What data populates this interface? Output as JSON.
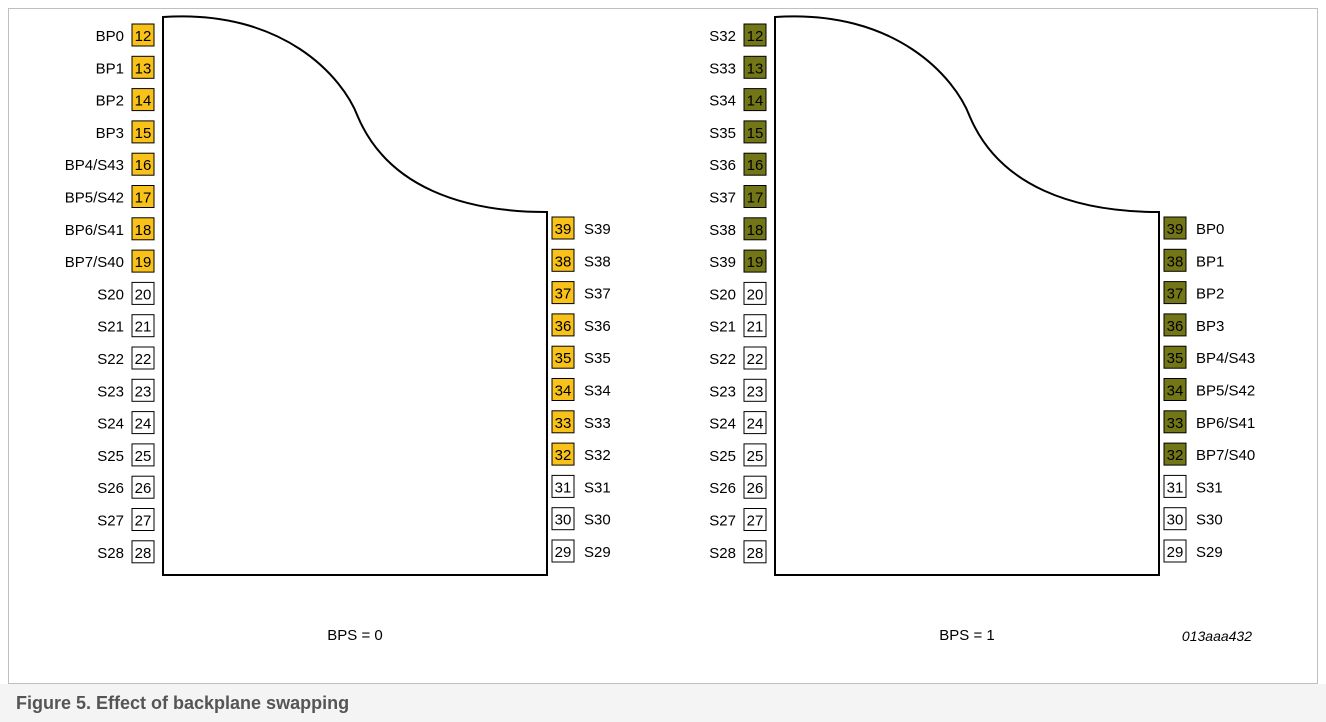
{
  "caption": "Figure 5.  Effect of backplane swapping",
  "figure_id": "013aaa432",
  "colors": {
    "yellow": "#F9C21A",
    "olive": "#737617",
    "outline": "#000000",
    "frame": "#bfbfbf"
  },
  "panels": [
    {
      "bps_label": "BPS = 0",
      "left_pins": [
        {
          "num": "12",
          "label": "BP0",
          "highlight": true
        },
        {
          "num": "13",
          "label": "BP1",
          "highlight": true
        },
        {
          "num": "14",
          "label": "BP2",
          "highlight": true
        },
        {
          "num": "15",
          "label": "BP3",
          "highlight": true
        },
        {
          "num": "16",
          "label": "BP4/S43",
          "highlight": true
        },
        {
          "num": "17",
          "label": "BP5/S42",
          "highlight": true
        },
        {
          "num": "18",
          "label": "BP6/S41",
          "highlight": true
        },
        {
          "num": "19",
          "label": "BP7/S40",
          "highlight": true
        },
        {
          "num": "20",
          "label": "S20",
          "highlight": false
        },
        {
          "num": "21",
          "label": "S21",
          "highlight": false
        },
        {
          "num": "22",
          "label": "S22",
          "highlight": false
        },
        {
          "num": "23",
          "label": "S23",
          "highlight": false
        },
        {
          "num": "24",
          "label": "S24",
          "highlight": false
        },
        {
          "num": "25",
          "label": "S25",
          "highlight": false
        },
        {
          "num": "26",
          "label": "S26",
          "highlight": false
        },
        {
          "num": "27",
          "label": "S27",
          "highlight": false
        },
        {
          "num": "28",
          "label": "S28",
          "highlight": false
        }
      ],
      "right_pins": [
        {
          "num": "39",
          "label": "S39",
          "highlight": true
        },
        {
          "num": "38",
          "label": "S38",
          "highlight": true
        },
        {
          "num": "37",
          "label": "S37",
          "highlight": true
        },
        {
          "num": "36",
          "label": "S36",
          "highlight": true
        },
        {
          "num": "35",
          "label": "S35",
          "highlight": true
        },
        {
          "num": "34",
          "label": "S34",
          "highlight": true
        },
        {
          "num": "33",
          "label": "S33",
          "highlight": true
        },
        {
          "num": "32",
          "label": "S32",
          "highlight": true
        },
        {
          "num": "31",
          "label": "S31",
          "highlight": false
        },
        {
          "num": "30",
          "label": "S30",
          "highlight": false
        },
        {
          "num": "29",
          "label": "S29",
          "highlight": false
        }
      ]
    },
    {
      "bps_label": "BPS = 1",
      "left_pins": [
        {
          "num": "12",
          "label": "S32",
          "highlight": true
        },
        {
          "num": "13",
          "label": "S33",
          "highlight": true
        },
        {
          "num": "14",
          "label": "S34",
          "highlight": true
        },
        {
          "num": "15",
          "label": "S35",
          "highlight": true
        },
        {
          "num": "16",
          "label": "S36",
          "highlight": true
        },
        {
          "num": "17",
          "label": "S37",
          "highlight": true
        },
        {
          "num": "18",
          "label": "S38",
          "highlight": true
        },
        {
          "num": "19",
          "label": "S39",
          "highlight": true
        },
        {
          "num": "20",
          "label": "S20",
          "highlight": false
        },
        {
          "num": "21",
          "label": "S21",
          "highlight": false
        },
        {
          "num": "22",
          "label": "S22",
          "highlight": false
        },
        {
          "num": "23",
          "label": "S23",
          "highlight": false
        },
        {
          "num": "24",
          "label": "S24",
          "highlight": false
        },
        {
          "num": "25",
          "label": "S25",
          "highlight": false
        },
        {
          "num": "26",
          "label": "S26",
          "highlight": false
        },
        {
          "num": "27",
          "label": "S27",
          "highlight": false
        },
        {
          "num": "28",
          "label": "S28",
          "highlight": false
        }
      ],
      "right_pins": [
        {
          "num": "39",
          "label": "BP0",
          "highlight": true
        },
        {
          "num": "38",
          "label": "BP1",
          "highlight": true
        },
        {
          "num": "37",
          "label": "BP2",
          "highlight": true
        },
        {
          "num": "36",
          "label": "BP3",
          "highlight": true
        },
        {
          "num": "35",
          "label": "BP4/S43",
          "highlight": true
        },
        {
          "num": "34",
          "label": "BP5/S42",
          "highlight": true
        },
        {
          "num": "33",
          "label": "BP6/S41",
          "highlight": true
        },
        {
          "num": "32",
          "label": "BP7/S40",
          "highlight": true
        },
        {
          "num": "31",
          "label": "S31",
          "highlight": false
        },
        {
          "num": "30",
          "label": "S30",
          "highlight": false
        },
        {
          "num": "29",
          "label": "S29",
          "highlight": false
        }
      ]
    }
  ]
}
